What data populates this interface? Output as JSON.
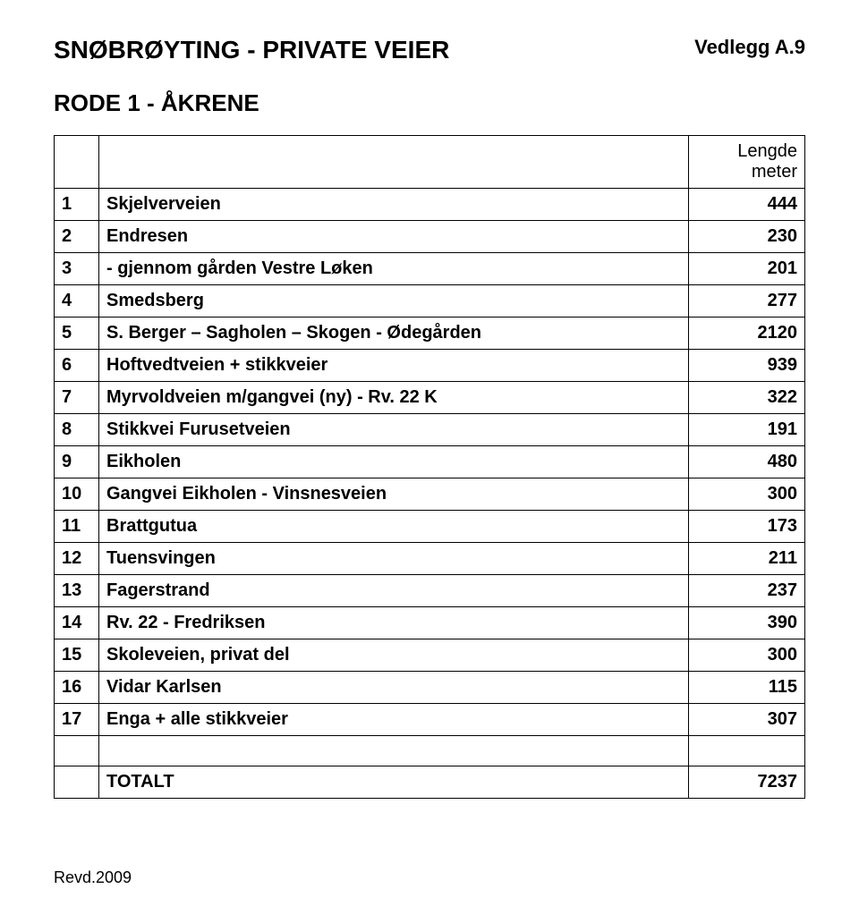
{
  "header": {
    "title": "SNØBRØYTING - PRIVATE VEIER",
    "attachment": "Vedlegg A.9",
    "subtitle": "RODE 1 - ÅKRENE"
  },
  "table": {
    "length_header": "Lengde meter",
    "rows": [
      {
        "num": "1",
        "desc": "Skjelverveien",
        "val": "444"
      },
      {
        "num": "2",
        "desc": "Endresen",
        "val": "230"
      },
      {
        "num": "3",
        "desc": "- gjennom gården Vestre Løken",
        "val": "201"
      },
      {
        "num": "4",
        "desc": "Smedsberg",
        "val": "277"
      },
      {
        "num": "5",
        "desc": "S. Berger – Sagholen – Skogen - Ødegården",
        "val": "2120"
      },
      {
        "num": "6",
        "desc": "Hoftvedtveien + stikkveier",
        "val": "939"
      },
      {
        "num": "7",
        "desc": "Myrvoldveien m/gangvei (ny)  - Rv. 22 K",
        "val": "322"
      },
      {
        "num": "8",
        "desc": "Stikkvei Furusetveien",
        "val": "191"
      },
      {
        "num": "9",
        "desc": "Eikholen",
        "val": "480"
      },
      {
        "num": "10",
        "desc": "Gangvei Eikholen - Vinsnesveien",
        "val": "300"
      },
      {
        "num": "11",
        "desc": "Brattgutua",
        "val": "173"
      },
      {
        "num": "12",
        "desc": "Tuensvingen",
        "val": "211"
      },
      {
        "num": "13",
        "desc": "Fagerstrand",
        "val": "237"
      },
      {
        "num": "14",
        "desc": "Rv. 22 - Fredriksen",
        "val": "390"
      },
      {
        "num": "15",
        "desc": "Skoleveien, privat del",
        "val": "300"
      },
      {
        "num": "16",
        "desc": "Vidar Karlsen",
        "val": "115"
      },
      {
        "num": "17",
        "desc": "Enga + alle stikkveier",
        "val": "307"
      }
    ],
    "total_label": "TOTALT",
    "total_value": "7237"
  },
  "footer": "Revd.2009",
  "style": {
    "background_color": "#ffffff",
    "border_color": "#000000",
    "text_color": "#000000",
    "title_fontsize": 28,
    "subtitle_fontsize": 26,
    "cell_fontsize": 20,
    "footer_fontsize": 18,
    "col_widths": {
      "num": 50,
      "val": 130
    }
  }
}
